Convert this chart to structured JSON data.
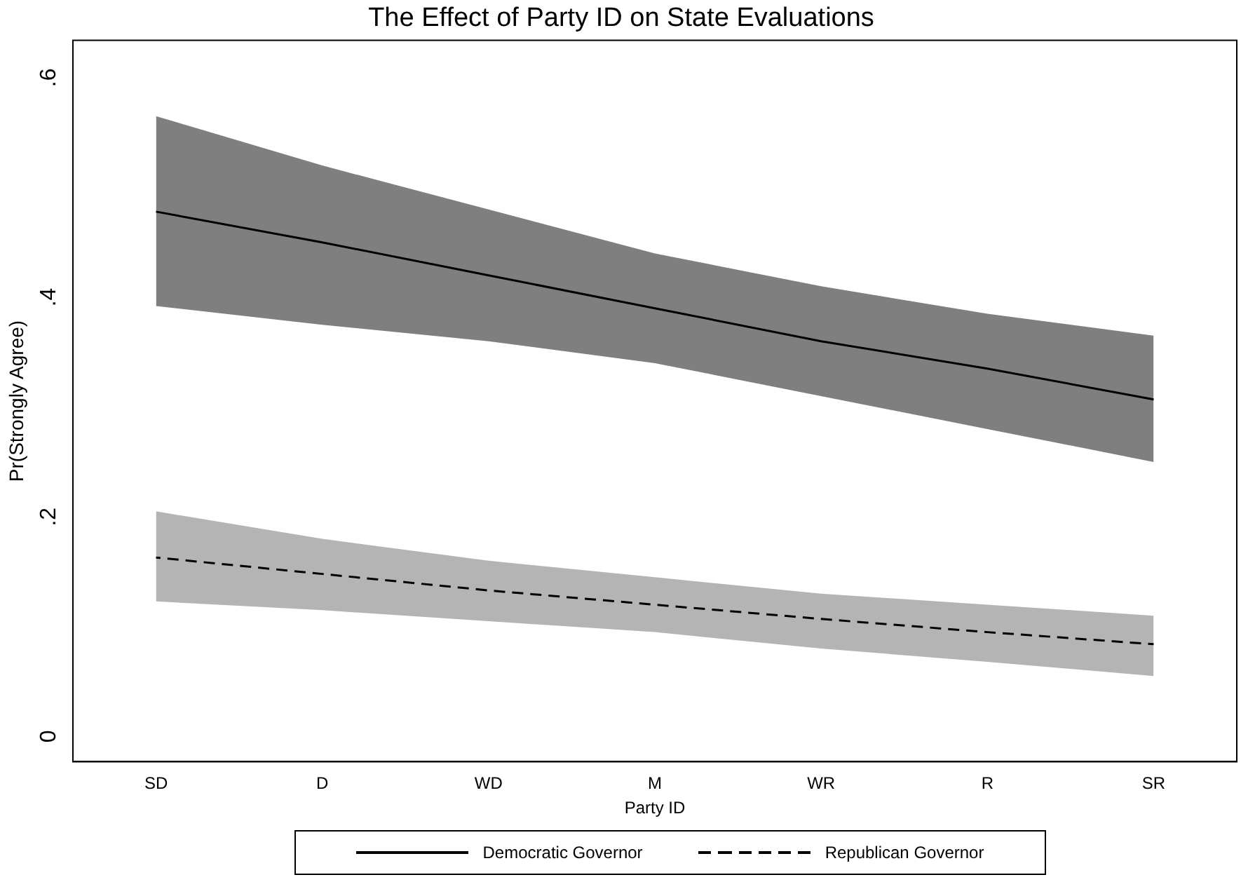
{
  "chart_data": {
    "type": "line",
    "title": "The Effect of Party ID on State Evaluations",
    "xlabel": "Party ID",
    "ylabel": "Pr(Strongly Agree)",
    "categories": [
      "SD",
      "D",
      "WD",
      "M",
      "WR",
      "R",
      "SR"
    ],
    "series": [
      {
        "name": "Democratic Governor",
        "color": "#000000",
        "line_style": "solid",
        "values": [
          0.478,
          0.45,
          0.42,
          0.39,
          0.36,
          0.335,
          0.307
        ],
        "lower": [
          0.392,
          0.375,
          0.36,
          0.34,
          0.31,
          0.28,
          0.25
        ],
        "upper": [
          0.565,
          0.52,
          0.48,
          0.44,
          0.41,
          0.385,
          0.365
        ]
      },
      {
        "name": "Republican Governor",
        "color": "#000000",
        "line_style": "dashed",
        "values": [
          0.163,
          0.148,
          0.133,
          0.12,
          0.107,
          0.095,
          0.084
        ],
        "lower": [
          0.123,
          0.115,
          0.105,
          0.095,
          0.08,
          0.068,
          0.055
        ],
        "upper": [
          0.205,
          0.18,
          0.16,
          0.145,
          0.13,
          0.12,
          0.11
        ]
      }
    ],
    "ylim": [
      -0.023,
      0.634
    ],
    "yticks": [
      {
        "value": 0,
        "label": "0"
      },
      {
        "value": 0.2,
        "label": ".2"
      },
      {
        "value": 0.4,
        "label": ".4"
      },
      {
        "value": 0.6,
        "label": ".6"
      }
    ],
    "grid": false,
    "legend": "bottom",
    "marker": "none"
  }
}
